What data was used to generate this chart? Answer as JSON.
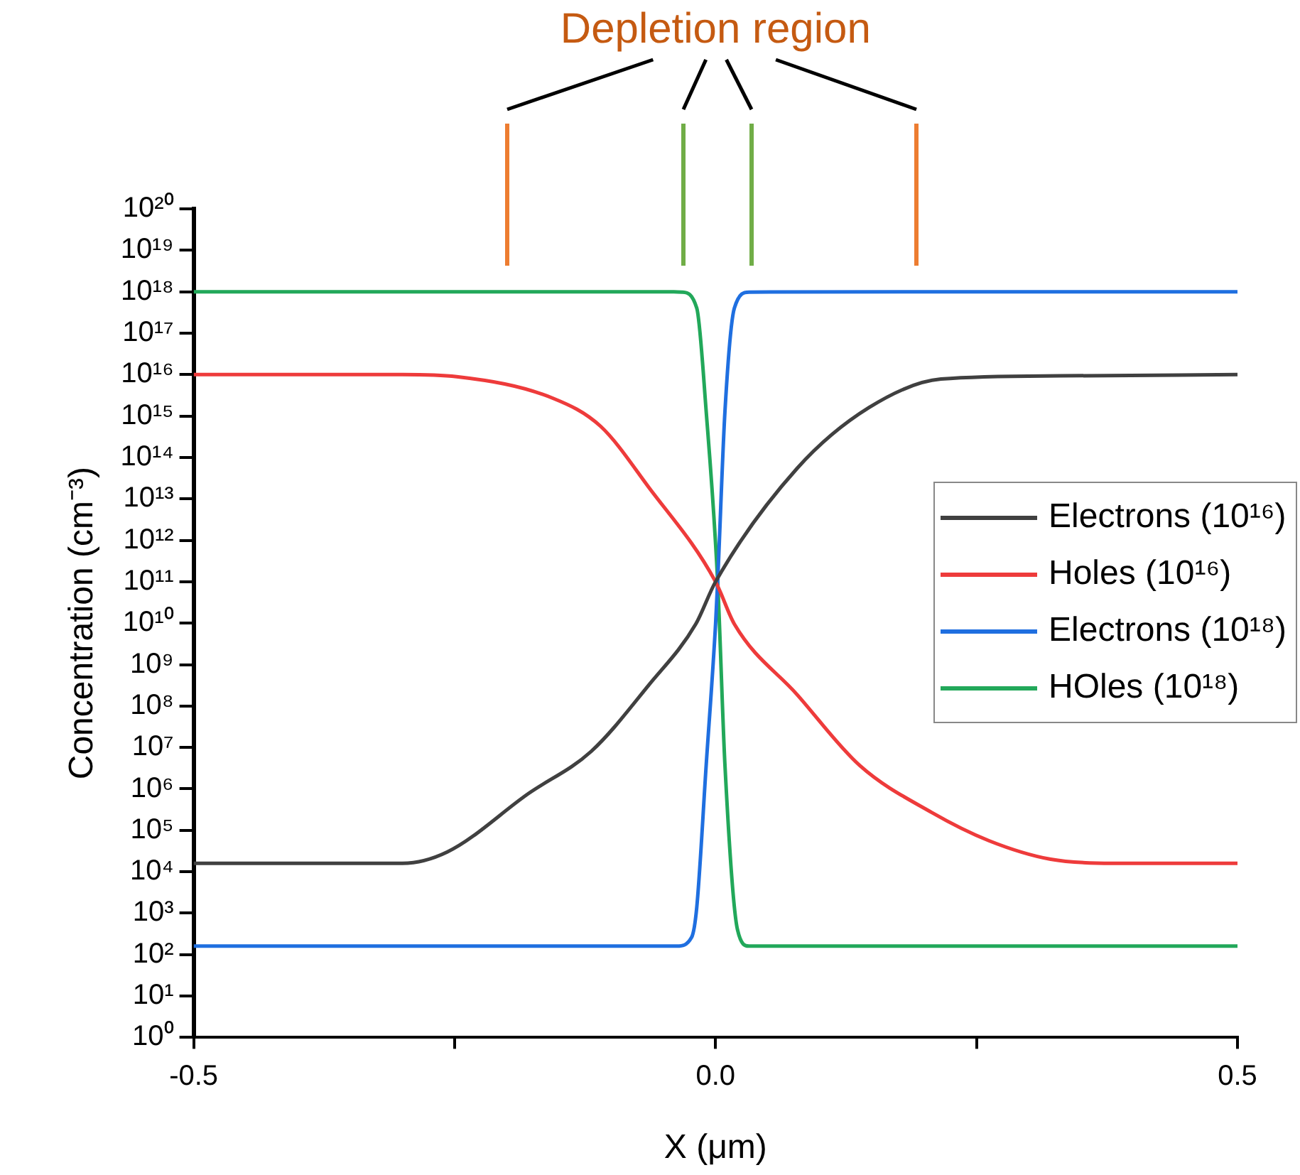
{
  "chart_data": {
    "type": "line",
    "title": "Depletion region",
    "xlabel": "X (μm)",
    "ylabel": "Concentration (cm⁻³)",
    "series": [
      {
        "name": "Electrons (10¹⁶)",
        "color": "#404040",
        "x": [
          -0.5,
          -0.3,
          -0.257,
          -0.179,
          -0.119,
          -0.064,
          -0.019,
          0,
          0.078,
          0.147,
          0.216,
          0.33,
          0.5
        ],
        "values": [
          16000.0,
          16000.0,
          30000.0,
          780000.0,
          8100000.0,
          320000000.0,
          9500000000.0,
          100000000000.0,
          54000000000000.0,
          1600000000000000.0,
          7800000000000000.0,
          9300000000000000.0,
          1e+16
        ]
      },
      {
        "name": "Holes (10¹⁶)",
        "color": "#ee3b3b",
        "x": [
          -0.5,
          -0.3,
          -0.248,
          -0.156,
          -0.11,
          -0.064,
          0,
          0.018,
          0.078,
          0.138,
          0.207,
          0.262,
          0.321,
          0.38,
          0.5
        ],
        "values": [
          1e+16,
          1e+16,
          8900000000000000.0,
          2700000000000000.0,
          560000000000000.0,
          19000000000000.0,
          100000000000.0,
          9500000000.0,
          190000000.0,
          3700000.0,
          270000.0,
          56000.0,
          20000.0,
          16000.0,
          16000.0
        ]
      },
      {
        "name": "Electrons (10¹⁸)",
        "color": "#1f6fe0",
        "x": [
          -0.5,
          -0.037,
          -0.023,
          -0.018,
          -0.009,
          0,
          0.002,
          0.009,
          0.018,
          0.032,
          0.5
        ],
        "values": [
          160.0,
          160.0,
          260.0,
          1400.0,
          3700000.0,
          9500000000.0,
          100000000000.0,
          1300000000000000.0,
          4e+17,
          9.8e+17,
          1e+18
        ]
      },
      {
        "name": "HOles (10¹⁸)",
        "color": "#22a85a",
        "x": [
          -0.5,
          -0.04,
          -0.032,
          -0.018,
          -0.009,
          0.002,
          0.009,
          0.021,
          0.032,
          0.5
        ],
        "values": [
          1e+18,
          1e+18,
          9.8e+17,
          4e+17,
          1300000000000000.0,
          100000000000.0,
          3700000.0,
          400.0,
          160.0,
          160.0
        ]
      }
    ],
    "log": "y",
    "xlim": [
      -0.5,
      0.5
    ],
    "xticks": [
      {
        "value": -0.5,
        "label": "-0.5"
      },
      {
        "value": -0.25,
        "label": null
      },
      {
        "value": 0,
        "label": "0.0"
      },
      {
        "value": 0.25,
        "label": null
      },
      {
        "value": 0.5,
        "label": "0.5"
      }
    ],
    "ylim": [
      1,
      1e+20
    ],
    "yticks": [
      {
        "value": 1,
        "label": "10⁰"
      },
      {
        "value": 10.0,
        "label": "10¹"
      },
      {
        "value": 100.0,
        "label": "10²"
      },
      {
        "value": 1000.0,
        "label": "10³"
      },
      {
        "value": 10000.0,
        "label": "10⁴"
      },
      {
        "value": 100000.0,
        "label": "10⁵"
      },
      {
        "value": 1000000.0,
        "label": "10⁶"
      },
      {
        "value": 10000000.0,
        "label": "10⁷"
      },
      {
        "value": 100000000.0,
        "label": "10⁸"
      },
      {
        "value": 1000000000.0,
        "label": "10⁹"
      },
      {
        "value": 10000000000.0,
        "label": "10¹⁰"
      },
      {
        "value": 100000000000.0,
        "label": "10¹¹"
      },
      {
        "value": 1000000000000.0,
        "label": "10¹²"
      },
      {
        "value": 10000000000000.0,
        "label": "10¹³"
      },
      {
        "value": 100000000000000.0,
        "label": "10¹⁴"
      },
      {
        "value": 1000000000000000.0,
        "label": "10¹⁵"
      },
      {
        "value": 1e+16,
        "label": "10¹⁶"
      },
      {
        "value": 1e+17,
        "label": "10¹⁷"
      },
      {
        "value": 1e+18,
        "label": "10¹⁸"
      },
      {
        "value": 1e+19,
        "label": "10¹⁹"
      },
      {
        "value": 1e+20,
        "label": "10²⁰"
      }
    ],
    "legend": "right",
    "marker": "none"
  }
}
